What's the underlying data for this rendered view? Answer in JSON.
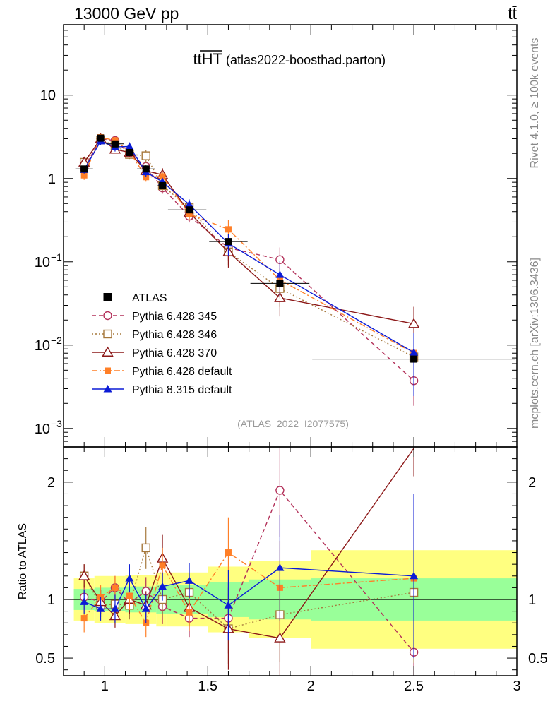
{
  "header": {
    "left": "13000 GeV pp",
    "right": "tt̄"
  },
  "side_labels": {
    "rivet": "Rivet 4.1.0, ≥ 100k events",
    "mcplots": "mcplots.cern.ch [arXiv:1306.3436]"
  },
  "chart_data": {
    "type": "line",
    "title_main": "ttHT",
    "title_sub": "(atlas2022-boosthad.parton)",
    "analysis_id": "(ATLAS_2022_I2077575)",
    "xlabel": "",
    "ylabel_ratio": "Ratio to ATLAS",
    "xlim": [
      0.8,
      3.0
    ],
    "ylim_main_log": [
      0.0006,
      70
    ],
    "ylim_ratio": [
      0.35,
      2.3
    ],
    "x_ticks": [
      1,
      1.5,
      2,
      2.5,
      3
    ],
    "x_tick_labels": [
      "1",
      "1.5",
      "2",
      "2.5",
      "3"
    ],
    "y_main_tick_values": [
      0.001,
      0.01,
      0.1,
      1,
      10
    ],
    "y_main_tick_labels": [
      {
        "base": "10",
        "exp": "−3"
      },
      {
        "base": "10",
        "exp": "−2"
      },
      {
        "base": "10",
        "exp": "−1"
      },
      {
        "base": "1",
        "exp": ""
      },
      {
        "base": "10",
        "exp": ""
      }
    ],
    "y_ratio_tick_values": [
      0.5,
      1,
      2
    ],
    "y_ratio_tick_labels": [
      "0.5",
      "1",
      "2"
    ],
    "x": [
      0.9,
      0.98,
      1.05,
      1.12,
      1.2,
      1.28,
      1.41,
      1.6,
      1.85,
      2.5
    ],
    "bin_edges": [
      0.85,
      0.95,
      1.0,
      1.1,
      1.15,
      1.25,
      1.3,
      1.5,
      1.7,
      2.0,
      3.0
    ],
    "band_inner_half": [
      0.09,
      0.1,
      0.1,
      0.11,
      0.11,
      0.12,
      0.12,
      0.15,
      0.17,
      0.18
    ],
    "band_outer_half": [
      0.18,
      0.2,
      0.2,
      0.21,
      0.21,
      0.23,
      0.23,
      0.28,
      0.33,
      0.42
    ],
    "reference": {
      "name": "ATLAS",
      "values": [
        1.3,
        3.05,
        2.6,
        2.05,
        1.3,
        0.82,
        0.42,
        0.175,
        0.055,
        0.0068
      ]
    },
    "series": [
      {
        "name": "Pythia 6.428 345",
        "color": "#b3315a",
        "dash": "6 4",
        "marker": "circle-open",
        "ratio": [
          1.02,
          0.98,
          1.1,
          0.97,
          1.07,
          0.94,
          0.84,
          0.84,
          1.93,
          0.55
        ],
        "err": [
          0.1,
          0.1,
          0.1,
          0.12,
          0.12,
          0.15,
          0.16,
          0.3,
          0.4,
          0.5
        ]
      },
      {
        "name": "Pythia 6.428 346",
        "color": "#a6783c",
        "dash": "2 3",
        "marker": "square-open",
        "ratio": [
          1.2,
          0.95,
          0.96,
          0.95,
          1.44,
          1.0,
          1.06,
          0.75,
          0.87,
          1.06
        ],
        "err": [
          0.1,
          0.1,
          0.1,
          0.12,
          0.18,
          0.15,
          0.16,
          0.3,
          0.4,
          0.6
        ]
      },
      {
        "name": "Pythia 6.428 370",
        "color": "#8c1818",
        "dash": "",
        "marker": "triangle-open",
        "ratio": [
          1.2,
          0.98,
          0.86,
          1.0,
          0.95,
          1.35,
          0.93,
          0.75,
          0.67,
          2.65
        ],
        "err": [
          0.1,
          0.1,
          0.1,
          0.12,
          0.12,
          0.2,
          0.16,
          0.35,
          0.4,
          0.6
        ]
      },
      {
        "name": "Pythia 6.428 default",
        "color": "#ff7f27",
        "dash": "8 3 2 3",
        "marker": "square-filled",
        "ratio": [
          0.84,
          1.02,
          1.1,
          1.03,
          0.8,
          1.29,
          0.89,
          1.4,
          1.1,
          1.18
        ],
        "err": [
          0.12,
          0.1,
          0.1,
          0.12,
          0.12,
          0.15,
          0.16,
          0.3,
          0.4,
          0.6
        ]
      },
      {
        "name": "Pythia 8.315 default",
        "color": "#0b1bd6",
        "dash": "",
        "marker": "triangle-filled",
        "ratio": [
          0.98,
          0.92,
          0.92,
          1.18,
          0.92,
          1.11,
          1.16,
          0.95,
          1.27,
          1.2
        ],
        "err": [
          0.1,
          0.1,
          0.12,
          0.12,
          0.12,
          0.12,
          0.15,
          0.3,
          0.45,
          0.7
        ]
      }
    ]
  }
}
